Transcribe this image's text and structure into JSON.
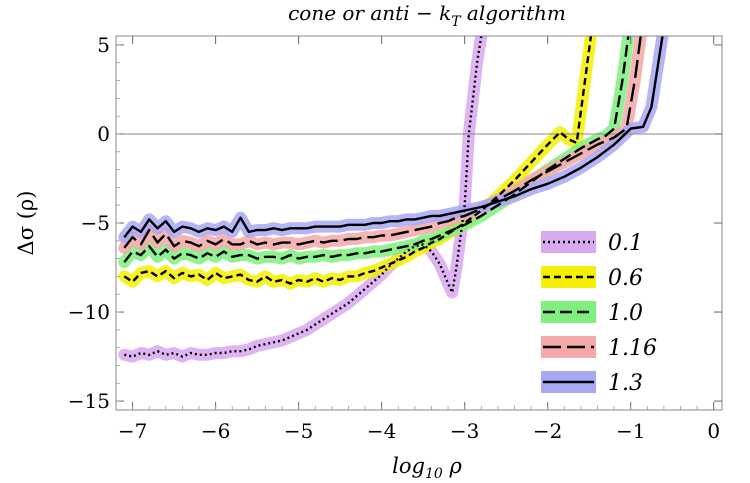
{
  "chart_data": {
    "type": "line",
    "title": "cone or anti − k",
    "title_sub": "T",
    "title_end": " algorithm",
    "xlabel": "log",
    "xlabel_sub": "10",
    "xlabel_end": " ρ",
    "ylabel": "Δσ (ρ)",
    "xlim": [
      -7.2,
      0.1
    ],
    "ylim": [
      -15.5,
      5.5
    ],
    "xticks": [
      -7,
      -6,
      -5,
      -4,
      -3,
      -2,
      -1,
      0
    ],
    "xtick_labels": [
      "−7",
      "−6",
      "−5",
      "−4",
      "−3",
      "−2",
      "−1",
      "0"
    ],
    "yticks": [
      -15,
      -10,
      -5,
      0,
      5
    ],
    "ytick_labels": [
      "−15",
      "−10",
      "−5",
      "0",
      "5"
    ],
    "legend_position": "bottom-right",
    "series": [
      {
        "name": "0.1",
        "band_color": "#d8a8f0",
        "dash": "2,3",
        "x": [
          -7.1,
          -7.0,
          -6.9,
          -6.8,
          -6.7,
          -6.6,
          -6.5,
          -6.4,
          -6.3,
          -6.2,
          -6.1,
          -6.0,
          -5.9,
          -5.8,
          -5.7,
          -5.6,
          -5.5,
          -5.4,
          -5.3,
          -5.2,
          -5.1,
          -5.0,
          -4.9,
          -4.8,
          -4.7,
          -4.6,
          -4.5,
          -4.4,
          -4.3,
          -4.2,
          -4.1,
          -4.0,
          -3.9,
          -3.8,
          -3.7,
          -3.6,
          -3.5,
          -3.4,
          -3.3,
          -3.2,
          -3.15,
          -3.1,
          -3.0,
          -2.95,
          -2.9,
          -2.85,
          -2.8,
          -2.75
        ],
        "y": [
          -12.4,
          -12.5,
          -12.3,
          -12.4,
          -12.2,
          -12.4,
          -12.3,
          -12.5,
          -12.3,
          -12.4,
          -12.4,
          -12.3,
          -12.3,
          -12.2,
          -12.2,
          -12.1,
          -11.9,
          -11.8,
          -11.7,
          -11.6,
          -11.4,
          -11.2,
          -11.0,
          -10.7,
          -10.4,
          -10.1,
          -9.8,
          -9.5,
          -9.1,
          -8.7,
          -8.3,
          -7.9,
          -7.4,
          -7.0,
          -6.6,
          -6.3,
          -6.2,
          -6.6,
          -7.3,
          -8.4,
          -8.9,
          -7.5,
          -4.0,
          0.0,
          2.0,
          4.0,
          5.5,
          6.5
        ]
      },
      {
        "name": "0.6",
        "band_color": "#f5f000",
        "dash": "7,4",
        "x": [
          -7.1,
          -7.0,
          -6.9,
          -6.8,
          -6.7,
          -6.6,
          -6.5,
          -6.4,
          -6.3,
          -6.2,
          -6.1,
          -6.0,
          -5.9,
          -5.8,
          -5.7,
          -5.6,
          -5.5,
          -5.4,
          -5.3,
          -5.2,
          -5.1,
          -5.0,
          -4.9,
          -4.8,
          -4.7,
          -4.6,
          -4.5,
          -4.4,
          -4.3,
          -4.2,
          -4.1,
          -4.0,
          -3.9,
          -3.8,
          -3.7,
          -3.6,
          -3.5,
          -3.4,
          -3.3,
          -3.2,
          -3.1,
          -3.0,
          -2.8,
          -2.6,
          -2.4,
          -2.2,
          -2.0,
          -1.85,
          -1.75,
          -1.65,
          -1.55,
          -1.45
        ],
        "y": [
          -8.0,
          -8.3,
          -7.8,
          -7.7,
          -8.0,
          -7.7,
          -8.1,
          -7.8,
          -8.0,
          -7.9,
          -8.2,
          -7.8,
          -8.1,
          -8.0,
          -7.9,
          -8.2,
          -8.3,
          -8.0,
          -8.3,
          -8.2,
          -8.4,
          -8.2,
          -8.3,
          -8.1,
          -8.3,
          -8.1,
          -8.2,
          -8.0,
          -8.0,
          -7.8,
          -7.7,
          -7.5,
          -7.3,
          -7.1,
          -6.9,
          -6.6,
          -6.4,
          -6.1,
          -5.9,
          -5.6,
          -5.3,
          -5.0,
          -4.3,
          -3.5,
          -2.6,
          -1.6,
          -0.6,
          0.1,
          -0.3,
          -0.5,
          3.0,
          6.5
        ]
      },
      {
        "name": "1.0",
        "band_color": "#7ef07e",
        "dash": "12,5",
        "x": [
          -7.1,
          -7.0,
          -6.9,
          -6.8,
          -6.7,
          -6.6,
          -6.5,
          -6.4,
          -6.3,
          -6.2,
          -6.1,
          -6.0,
          -5.9,
          -5.8,
          -5.7,
          -5.6,
          -5.5,
          -5.4,
          -5.3,
          -5.2,
          -5.1,
          -5.0,
          -4.9,
          -4.8,
          -4.7,
          -4.6,
          -4.5,
          -4.4,
          -4.3,
          -4.2,
          -4.1,
          -4.0,
          -3.9,
          -3.8,
          -3.7,
          -3.6,
          -3.5,
          -3.4,
          -3.3,
          -3.2,
          -3.1,
          -3.0,
          -2.8,
          -2.6,
          -2.4,
          -2.2,
          -2.0,
          -1.8,
          -1.6,
          -1.4,
          -1.3,
          -1.2,
          -1.1,
          -1.0
        ],
        "y": [
          -7.2,
          -6.6,
          -6.8,
          -6.3,
          -6.9,
          -6.5,
          -7.0,
          -6.7,
          -6.8,
          -7.0,
          -6.7,
          -6.9,
          -6.6,
          -6.9,
          -6.8,
          -6.8,
          -7.0,
          -6.9,
          -6.9,
          -7.0,
          -6.8,
          -7.0,
          -6.9,
          -6.9,
          -6.8,
          -6.9,
          -6.8,
          -6.8,
          -6.7,
          -6.7,
          -6.6,
          -6.6,
          -6.5,
          -6.4,
          -6.3,
          -6.2,
          -6.0,
          -5.9,
          -5.7,
          -5.5,
          -5.3,
          -5.1,
          -4.6,
          -4.0,
          -3.4,
          -2.7,
          -2.0,
          -1.4,
          -0.8,
          -0.3,
          -0.1,
          0.3,
          3.0,
          6.5
        ]
      },
      {
        "name": "1.16",
        "band_color": "#f5a8a8",
        "dash": "18,6",
        "x": [
          -7.1,
          -7.0,
          -6.9,
          -6.8,
          -6.7,
          -6.6,
          -6.5,
          -6.4,
          -6.3,
          -6.2,
          -6.1,
          -6.0,
          -5.9,
          -5.8,
          -5.7,
          -5.6,
          -5.5,
          -5.4,
          -5.3,
          -5.2,
          -5.1,
          -5.0,
          -4.9,
          -4.8,
          -4.7,
          -4.6,
          -4.5,
          -4.4,
          -4.3,
          -4.2,
          -4.1,
          -4.0,
          -3.9,
          -3.8,
          -3.7,
          -3.6,
          -3.5,
          -3.4,
          -3.3,
          -3.2,
          -3.1,
          -3.0,
          -2.8,
          -2.6,
          -2.4,
          -2.2,
          -2.0,
          -1.8,
          -1.6,
          -1.4,
          -1.2,
          -1.05,
          -0.95,
          -0.85
        ],
        "y": [
          -6.4,
          -5.8,
          -6.2,
          -5.4,
          -6.1,
          -5.6,
          -6.3,
          -6.0,
          -6.1,
          -6.3,
          -6.0,
          -6.2,
          -5.9,
          -6.2,
          -6.2,
          -6.0,
          -6.2,
          -6.1,
          -6.2,
          -6.1,
          -6.1,
          -6.2,
          -6.1,
          -6.0,
          -6.1,
          -6.0,
          -6.0,
          -5.9,
          -5.9,
          -5.8,
          -5.8,
          -5.7,
          -5.7,
          -5.6,
          -5.5,
          -5.4,
          -5.3,
          -5.2,
          -5.0,
          -4.9,
          -4.7,
          -4.6,
          -4.2,
          -3.7,
          -3.2,
          -2.6,
          -2.1,
          -1.6,
          -1.1,
          -0.6,
          -0.2,
          0.3,
          3.0,
          6.5
        ]
      },
      {
        "name": "1.3",
        "band_color": "#a8a8f5",
        "dash": "",
        "x": [
          -7.1,
          -7.0,
          -6.9,
          -6.8,
          -6.7,
          -6.6,
          -6.5,
          -6.4,
          -6.3,
          -6.2,
          -6.1,
          -6.0,
          -5.9,
          -5.8,
          -5.7,
          -5.6,
          -5.5,
          -5.4,
          -5.3,
          -5.2,
          -5.1,
          -5.0,
          -4.9,
          -4.8,
          -4.7,
          -4.6,
          -4.5,
          -4.4,
          -4.3,
          -4.2,
          -4.1,
          -4.0,
          -3.9,
          -3.8,
          -3.7,
          -3.6,
          -3.5,
          -3.4,
          -3.3,
          -3.2,
          -3.1,
          -3.0,
          -2.8,
          -2.6,
          -2.4,
          -2.2,
          -2.0,
          -1.8,
          -1.6,
          -1.4,
          -1.2,
          -1.0,
          -0.85,
          -0.75,
          -0.6
        ],
        "y": [
          -5.8,
          -5.2,
          -5.5,
          -4.8,
          -5.3,
          -4.9,
          -5.5,
          -5.2,
          -5.3,
          -5.5,
          -5.3,
          -5.4,
          -5.2,
          -5.5,
          -4.7,
          -5.5,
          -5.4,
          -5.4,
          -5.3,
          -5.4,
          -5.3,
          -5.3,
          -5.3,
          -5.2,
          -5.2,
          -5.2,
          -5.2,
          -5.1,
          -5.1,
          -5.1,
          -5.0,
          -5.0,
          -4.9,
          -4.9,
          -4.8,
          -4.8,
          -4.7,
          -4.6,
          -4.6,
          -4.5,
          -4.4,
          -4.3,
          -4.1,
          -3.8,
          -3.5,
          -3.1,
          -2.8,
          -2.4,
          -1.9,
          -1.3,
          -0.6,
          0.3,
          0.4,
          1.5,
          6.0
        ]
      }
    ]
  }
}
